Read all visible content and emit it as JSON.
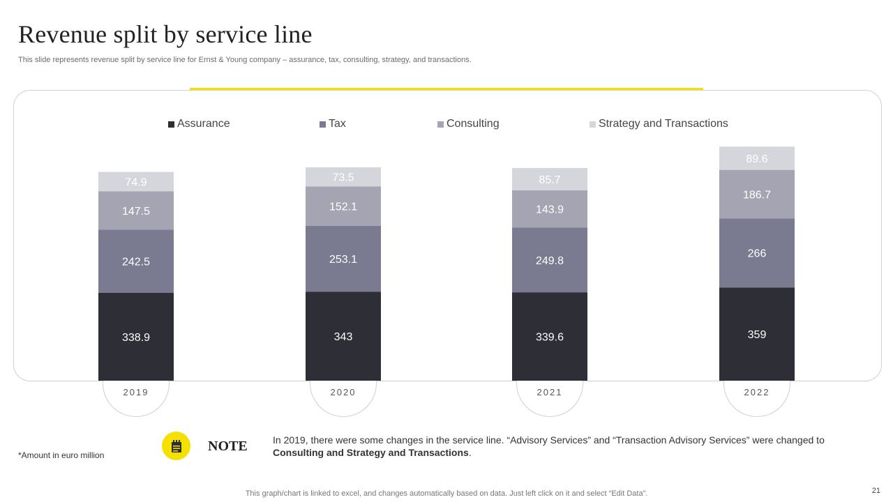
{
  "header": {
    "title": "Revenue split by service line",
    "subtitle": "This slide represents revenue split by service line for Ernst & Young company – assurance, tax, consulting, strategy, and transactions."
  },
  "colors": {
    "accent": "#f5e100",
    "assurance": "#2e2e36",
    "tax": "#7a7a90",
    "consulting": "#a4a4b2",
    "strategy": "#d5d5dc"
  },
  "chart_data": {
    "type": "bar",
    "stacked": true,
    "categories": [
      "2019",
      "2020",
      "2021",
      "2022"
    ],
    "series": [
      {
        "name": "Assurance",
        "values": [
          338.9,
          343,
          339.6,
          359
        ],
        "color": "#2e2e36",
        "label_color": "#ffffff"
      },
      {
        "name": "Tax",
        "values": [
          242.5,
          253.1,
          249.8,
          266
        ],
        "color": "#7a7a90",
        "label_color": "#ffffff"
      },
      {
        "name": "Consulting",
        "values": [
          147.5,
          152.1,
          143.9,
          186.7
        ],
        "color": "#a4a4b2",
        "label_color": "#ffffff"
      },
      {
        "name": "Strategy and Transactions",
        "values": [
          74.9,
          73.5,
          85.7,
          89.6
        ],
        "color": "#d5d5dc",
        "label_color": "#ffffff"
      }
    ],
    "legend_position": "top",
    "grid": false,
    "ylim": [
      0,
      1000
    ]
  },
  "note": {
    "label": "NOTE",
    "text_plain": "In 2019, there were some changes in the service line. “Advisory Services” and “Transaction Advisory Services” were changed to",
    "text_bold": "Consulting and Strategy and Transactions",
    "text_end": ".",
    "icon": "notepad-icon"
  },
  "amount_note": "*Amount in euro million",
  "footer": "This graph/chart is linked to excel, and changes automatically based on data. Just left click on it and select “Edit Data”.",
  "page_number": "21"
}
